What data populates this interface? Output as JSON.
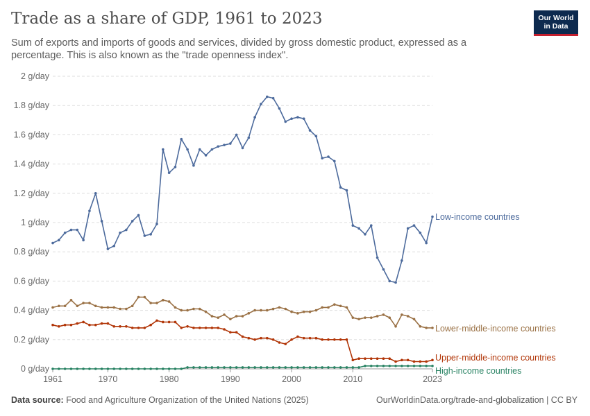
{
  "header": {
    "title": "Trade as a share of GDP, 1961 to 2023",
    "subtitle": "Sum of exports and imports of goods and services, divided by gross domestic product, expressed as a percentage. This is also known as the \"trade openness index\".",
    "logo_line1": "Our World",
    "logo_line2": "in Data"
  },
  "footer": {
    "source_label": "Data source:",
    "source_text": "Food and Agriculture Organization of the United Nations (2025)",
    "right_text": "OurWorldinData.org/trade-and-globalization | CC BY"
  },
  "colors": {
    "low_income": "#4c6a9c",
    "lower_middle_income": "#9a7145",
    "upper_middle_income": "#b13507",
    "high_income": "#2b8465",
    "grid": "#dddddd",
    "axis_text": "#666666"
  },
  "chart_data": {
    "type": "line",
    "title": "Trade as a share of GDP, 1961 to 2023",
    "ylabel": "",
    "xlabel": "",
    "ylim": [
      0,
      2
    ],
    "xlim": [
      1961,
      2023
    ],
    "y_ticks": [
      0,
      0.2,
      0.4,
      0.6,
      0.8,
      1,
      1.2,
      1.4,
      1.6,
      1.8,
      2
    ],
    "y_tick_labels": [
      "0 g/day",
      "0.2 g/day",
      "0.4 g/day",
      "0.6 g/day",
      "0.8 g/day",
      "1 g/day",
      "1.2 g/day",
      "1.4 g/day",
      "1.6 g/day",
      "1.8 g/day",
      "2 g/day"
    ],
    "x_ticks": [
      1961,
      1970,
      1980,
      1990,
      2000,
      2010,
      2023
    ],
    "x_tick_labels": [
      "1961",
      "1970",
      "1980",
      "1990",
      "2000",
      "2010",
      "2023"
    ],
    "grid": "horizontal dashed",
    "legend": "line-end labels",
    "x": [
      1961,
      1962,
      1963,
      1964,
      1965,
      1966,
      1967,
      1968,
      1969,
      1970,
      1971,
      1972,
      1973,
      1974,
      1975,
      1976,
      1977,
      1978,
      1979,
      1980,
      1981,
      1982,
      1983,
      1984,
      1985,
      1986,
      1987,
      1988,
      1989,
      1990,
      1991,
      1992,
      1993,
      1994,
      1995,
      1996,
      1997,
      1998,
      1999,
      2000,
      2001,
      2002,
      2003,
      2004,
      2005,
      2006,
      2007,
      2008,
      2009,
      2010,
      2011,
      2012,
      2013,
      2014,
      2015,
      2016,
      2017,
      2018,
      2019,
      2020,
      2021,
      2022,
      2023
    ],
    "series": [
      {
        "name": "Low-income countries",
        "color_key": "low_income",
        "values": [
          0.86,
          0.88,
          0.93,
          0.95,
          0.95,
          0.88,
          1.08,
          1.2,
          1.01,
          0.82,
          0.84,
          0.93,
          0.95,
          1.01,
          1.05,
          0.91,
          0.92,
          0.99,
          1.5,
          1.34,
          1.38,
          1.57,
          1.5,
          1.39,
          1.5,
          1.46,
          1.5,
          1.52,
          1.53,
          1.54,
          1.6,
          1.51,
          1.58,
          1.72,
          1.81,
          1.86,
          1.85,
          1.78,
          1.69,
          1.71,
          1.72,
          1.71,
          1.63,
          1.59,
          1.44,
          1.45,
          1.42,
          1.24,
          1.22,
          0.98,
          0.96,
          0.92,
          0.98,
          0.76,
          0.68,
          0.6,
          0.59,
          0.74,
          0.96,
          0.98,
          0.93,
          0.86,
          1.04
        ]
      },
      {
        "name": "Lower-middle-income countries",
        "color_key": "lower_middle_income",
        "values": [
          0.42,
          0.43,
          0.43,
          0.47,
          0.43,
          0.45,
          0.45,
          0.43,
          0.42,
          0.42,
          0.42,
          0.41,
          0.41,
          0.43,
          0.49,
          0.49,
          0.45,
          0.45,
          0.47,
          0.46,
          0.42,
          0.4,
          0.4,
          0.41,
          0.41,
          0.39,
          0.36,
          0.35,
          0.37,
          0.34,
          0.36,
          0.36,
          0.38,
          0.4,
          0.4,
          0.4,
          0.41,
          0.42,
          0.41,
          0.39,
          0.38,
          0.39,
          0.39,
          0.4,
          0.42,
          0.42,
          0.44,
          0.43,
          0.42,
          0.35,
          0.34,
          0.35,
          0.35,
          0.36,
          0.37,
          0.35,
          0.29,
          0.37,
          0.36,
          0.34,
          0.29,
          0.28,
          0.28
        ]
      },
      {
        "name": "Upper-middle-income countries",
        "color_key": "upper_middle_income",
        "values": [
          0.3,
          0.29,
          0.3,
          0.3,
          0.31,
          0.32,
          0.3,
          0.3,
          0.31,
          0.31,
          0.29,
          0.29,
          0.29,
          0.28,
          0.28,
          0.28,
          0.3,
          0.33,
          0.32,
          0.32,
          0.32,
          0.28,
          0.29,
          0.28,
          0.28,
          0.28,
          0.28,
          0.28,
          0.27,
          0.25,
          0.25,
          0.22,
          0.21,
          0.2,
          0.21,
          0.21,
          0.2,
          0.18,
          0.17,
          0.2,
          0.22,
          0.21,
          0.21,
          0.21,
          0.2,
          0.2,
          0.2,
          0.2,
          0.2,
          0.06,
          0.07,
          0.07,
          0.07,
          0.07,
          0.07,
          0.07,
          0.05,
          0.06,
          0.06,
          0.05,
          0.05,
          0.05,
          0.06
        ]
      },
      {
        "name": "High-income countries",
        "color_key": "high_income",
        "values": [
          0.0,
          0.0,
          0.0,
          0.0,
          0.0,
          0.0,
          0.0,
          0.0,
          0.0,
          0.0,
          0.0,
          0.0,
          0.0,
          0.0,
          0.0,
          0.0,
          0.0,
          0.0,
          0.0,
          0.0,
          0.0,
          0.0,
          0.01,
          0.01,
          0.01,
          0.01,
          0.01,
          0.01,
          0.01,
          0.01,
          0.01,
          0.01,
          0.01,
          0.01,
          0.01,
          0.01,
          0.01,
          0.01,
          0.01,
          0.01,
          0.01,
          0.01,
          0.01,
          0.01,
          0.01,
          0.01,
          0.01,
          0.01,
          0.01,
          0.01,
          0.01,
          0.02,
          0.02,
          0.02,
          0.02,
          0.02,
          0.02,
          0.02,
          0.02,
          0.02,
          0.02,
          0.02,
          0.02
        ]
      }
    ]
  }
}
